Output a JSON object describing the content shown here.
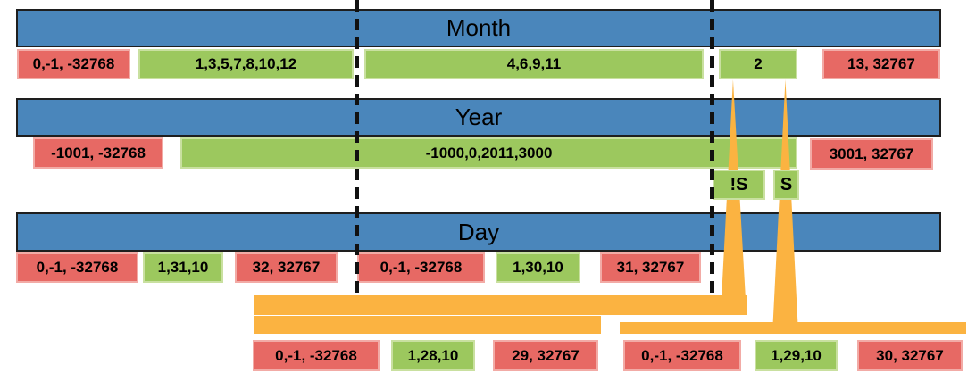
{
  "colors": {
    "bar_blue": "#4A86BB",
    "valid_green": "#9CC85E",
    "invalid_red": "#E76964",
    "funnel_orange": "#FBB341",
    "line_black": "#111111"
  },
  "month": {
    "title": "Month",
    "invalid_low": "0,-1, -32768",
    "valid_31": "1,3,5,7,8,10,12",
    "valid_30": "4,6,9,11",
    "valid_feb": "2",
    "invalid_high": "13, 32767"
  },
  "year": {
    "title": "Year",
    "invalid_low": "-1001, -32768",
    "valid": "-1000,0,2011,3000",
    "invalid_high": "3001, 32767",
    "nonleap_label": "!S",
    "leap_label": "S"
  },
  "day": {
    "title": "Day",
    "m31_invalid_low": "0,-1, -32768",
    "m31_valid": "1,31,10",
    "m31_invalid_high": "32, 32767",
    "m30_invalid_low": "0,-1, -32768",
    "m30_valid": "1,30,10",
    "m30_invalid_high": "31, 32767"
  },
  "feb_nonleap": {
    "invalid_low": "0,-1, -32768",
    "valid": "1,28,10",
    "invalid_high": "29, 32767"
  },
  "feb_leap": {
    "invalid_low": "0,-1, -32768",
    "valid": "1,29,10",
    "invalid_high": "30, 32767"
  }
}
